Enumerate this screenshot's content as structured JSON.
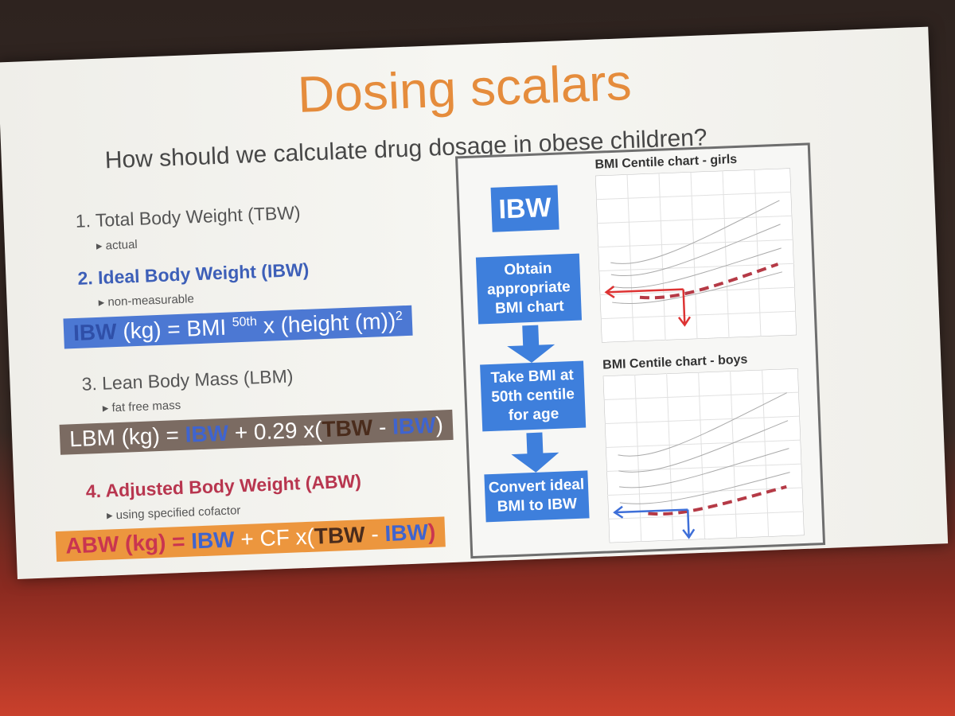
{
  "slide": {
    "title": "Dosing scalars",
    "subtitle": "How should we calculate drug dosage in obese children?",
    "items": [
      {
        "heading": "1. Total Body Weight (TBW)",
        "note": "actual"
      },
      {
        "heading": "2. Ideal Body Weight (IBW)",
        "note": "non-measurable"
      },
      {
        "heading": "3. Lean Body Mass (LBM)",
        "note": "fat free mass"
      },
      {
        "heading": "4. Adjusted Body Weight (ABW)",
        "note": "using specified cofactor"
      }
    ],
    "formulas": {
      "ibw": [
        "IBW",
        " (kg) = BMI ",
        "50th",
        " x (height (m))",
        "2"
      ],
      "lbm": [
        "LBM (kg) = ",
        "IBW",
        " + 0.29 x(",
        "TBW",
        " - ",
        "IBW",
        ")"
      ],
      "abw": [
        "ABW (kg) = ",
        "IBW",
        " + CF x(",
        "TBW",
        " - ",
        "IBW",
        ")"
      ]
    },
    "flowchart": {
      "label": "IBW",
      "steps": [
        "Obtain appropriate BMI chart",
        "Take BMI at 50th centile for age",
        "Convert ideal BMI to IBW"
      ]
    },
    "charts": [
      "BMI Centile chart - girls",
      "BMI Centile chart - boys"
    ]
  }
}
